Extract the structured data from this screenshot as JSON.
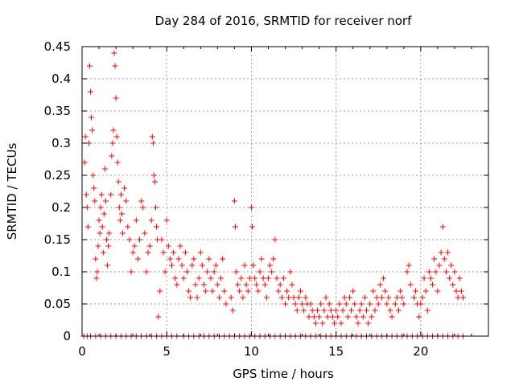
{
  "chart_data": {
    "type": "scatter",
    "title": "Day 284 of 2016, SRMTID for receiver norf",
    "xlabel": "GPS time / hours",
    "ylabel": "SRMTID / TECUs",
    "xlim": [
      0,
      24
    ],
    "ylim": [
      0,
      0.45
    ],
    "x_ticks": [
      0,
      5,
      10,
      15,
      20
    ],
    "x_tick_labels": [
      "0",
      "5",
      "10",
      "15",
      "20"
    ],
    "y_ticks": [
      0,
      0.05,
      0.1,
      0.15,
      0.2,
      0.25,
      0.3,
      0.35,
      0.4,
      0.45
    ],
    "y_tick_labels": [
      "0",
      "0.05",
      "0.1",
      "0.15",
      "0.2",
      "0.25",
      "0.3",
      "0.35",
      "0.4",
      "0.45"
    ],
    "grid": true,
    "marker": "+",
    "color": "#ff0000",
    "series": [
      {
        "name": "SRMTID",
        "points": [
          [
            0.15,
            0.27
          ],
          [
            0.2,
            0.31
          ],
          [
            0.25,
            0.22
          ],
          [
            0.3,
            0.2
          ],
          [
            0.35,
            0.17
          ],
          [
            0.4,
            0.3
          ],
          [
            0.45,
            0.42
          ],
          [
            0.5,
            0.38
          ],
          [
            0.55,
            0.34
          ],
          [
            0.6,
            0.32
          ],
          [
            0.65,
            0.25
          ],
          [
            0.7,
            0.23
          ],
          [
            0.75,
            0.21
          ],
          [
            0.8,
            0.12
          ],
          [
            0.85,
            0.09
          ],
          [
            0.9,
            0.1
          ],
          [
            0.95,
            0.14
          ],
          [
            1.0,
            0.18
          ],
          [
            1.05,
            0.16
          ],
          [
            1.1,
            0.2
          ],
          [
            1.15,
            0.22
          ],
          [
            1.2,
            0.17
          ],
          [
            1.25,
            0.13
          ],
          [
            1.3,
            0.19
          ],
          [
            1.35,
            0.26
          ],
          [
            1.4,
            0.21
          ],
          [
            1.45,
            0.15
          ],
          [
            1.5,
            0.11
          ],
          [
            1.55,
            0.14
          ],
          [
            1.6,
            0.16
          ],
          [
            1.7,
            0.22
          ],
          [
            1.75,
            0.28
          ],
          [
            1.8,
            0.3
          ],
          [
            1.85,
            0.32
          ],
          [
            1.9,
            0.44
          ],
          [
            1.95,
            0.42
          ],
          [
            2.0,
            0.37
          ],
          [
            2.05,
            0.31
          ],
          [
            2.1,
            0.27
          ],
          [
            2.15,
            0.24
          ],
          [
            2.2,
            0.2
          ],
          [
            2.25,
            0.18
          ],
          [
            2.3,
            0.22
          ],
          [
            2.35,
            0.19
          ],
          [
            2.4,
            0.16
          ],
          [
            2.5,
            0.23
          ],
          [
            2.6,
            0.21
          ],
          [
            2.7,
            0.17
          ],
          [
            2.8,
            0.15
          ],
          [
            2.9,
            0.1
          ],
          [
            3.0,
            0.13
          ],
          [
            3.1,
            0.14
          ],
          [
            3.2,
            0.18
          ],
          [
            3.3,
            0.12
          ],
          [
            3.4,
            0.15
          ],
          [
            3.5,
            0.21
          ],
          [
            3.6,
            0.2
          ],
          [
            3.7,
            0.16
          ],
          [
            3.8,
            0.1
          ],
          [
            3.9,
            0.13
          ],
          [
            4.0,
            0.14
          ],
          [
            4.1,
            0.18
          ],
          [
            4.15,
            0.31
          ],
          [
            4.2,
            0.3
          ],
          [
            4.25,
            0.25
          ],
          [
            4.3,
            0.24
          ],
          [
            4.35,
            0.2
          ],
          [
            4.4,
            0.17
          ],
          [
            4.45,
            0.15
          ],
          [
            4.5,
            0.03
          ],
          [
            4.6,
            0.07
          ],
          [
            4.7,
            0.15
          ],
          [
            4.8,
            0.13
          ],
          [
            4.9,
            0.1
          ],
          [
            5.0,
            0.18
          ],
          [
            5.1,
            0.14
          ],
          [
            5.2,
            0.12
          ],
          [
            5.3,
            0.11
          ],
          [
            5.4,
            0.13
          ],
          [
            5.5,
            0.09
          ],
          [
            5.6,
            0.08
          ],
          [
            5.7,
            0.12
          ],
          [
            5.8,
            0.14
          ],
          [
            5.9,
            0.11
          ],
          [
            6.0,
            0.09
          ],
          [
            6.1,
            0.13
          ],
          [
            6.2,
            0.1
          ],
          [
            6.3,
            0.07
          ],
          [
            6.4,
            0.06
          ],
          [
            6.5,
            0.11
          ],
          [
            6.6,
            0.12
          ],
          [
            6.7,
            0.08
          ],
          [
            6.8,
            0.06
          ],
          [
            6.9,
            0.09
          ],
          [
            7.0,
            0.13
          ],
          [
            7.1,
            0.11
          ],
          [
            7.2,
            0.08
          ],
          [
            7.3,
            0.07
          ],
          [
            7.4,
            0.1
          ],
          [
            7.5,
            0.12
          ],
          [
            7.6,
            0.09
          ],
          [
            7.7,
            0.07
          ],
          [
            7.8,
            0.1
          ],
          [
            7.9,
            0.11
          ],
          [
            8.0,
            0.08
          ],
          [
            8.1,
            0.06
          ],
          [
            8.2,
            0.09
          ],
          [
            8.3,
            0.12
          ],
          [
            8.4,
            0.07
          ],
          [
            8.5,
            0.05
          ],
          [
            8.8,
            0.06
          ],
          [
            8.9,
            0.04
          ],
          [
            9.0,
            0.21
          ],
          [
            9.05,
            0.17
          ],
          [
            9.1,
            0.1
          ],
          [
            9.2,
            0.08
          ],
          [
            9.3,
            0.07
          ],
          [
            9.4,
            0.09
          ],
          [
            9.5,
            0.06
          ],
          [
            9.6,
            0.11
          ],
          [
            9.7,
            0.08
          ],
          [
            9.8,
            0.07
          ],
          [
            9.9,
            0.09
          ],
          [
            10.0,
            0.2
          ],
          [
            10.05,
            0.17
          ],
          [
            10.1,
            0.11
          ],
          [
            10.2,
            0.09
          ],
          [
            10.3,
            0.08
          ],
          [
            10.4,
            0.07
          ],
          [
            10.5,
            0.1
          ],
          [
            10.6,
            0.12
          ],
          [
            10.7,
            0.09
          ],
          [
            10.8,
            0.08
          ],
          [
            10.9,
            0.06
          ],
          [
            11.0,
            0.09
          ],
          [
            11.1,
            0.11
          ],
          [
            11.2,
            0.1
          ],
          [
            11.3,
            0.12
          ],
          [
            11.4,
            0.15
          ],
          [
            11.5,
            0.09
          ],
          [
            11.6,
            0.07
          ],
          [
            11.7,
            0.08
          ],
          [
            11.8,
            0.06
          ],
          [
            11.9,
            0.09
          ],
          [
            12.0,
            0.05
          ],
          [
            12.1,
            0.07
          ],
          [
            12.2,
            0.06
          ],
          [
            12.3,
            0.1
          ],
          [
            12.4,
            0.08
          ],
          [
            12.5,
            0.06
          ],
          [
            12.6,
            0.05
          ],
          [
            12.7,
            0.04
          ],
          [
            12.8,
            0.06
          ],
          [
            12.9,
            0.07
          ],
          [
            13.0,
            0.05
          ],
          [
            13.1,
            0.04
          ],
          [
            13.2,
            0.06
          ],
          [
            13.3,
            0.05
          ],
          [
            13.4,
            0.03
          ],
          [
            13.5,
            0.05
          ],
          [
            13.6,
            0.04
          ],
          [
            13.7,
            0.03
          ],
          [
            13.8,
            0.02
          ],
          [
            13.9,
            0.04
          ],
          [
            14.0,
            0.03
          ],
          [
            14.1,
            0.05
          ],
          [
            14.2,
            0.02
          ],
          [
            14.3,
            0.04
          ],
          [
            14.4,
            0.06
          ],
          [
            14.5,
            0.03
          ],
          [
            14.6,
            0.05
          ],
          [
            14.7,
            0.04
          ],
          [
            14.8,
            0.03
          ],
          [
            14.9,
            0.02
          ],
          [
            15.0,
            0.04
          ],
          [
            15.1,
            0.03
          ],
          [
            15.2,
            0.05
          ],
          [
            15.3,
            0.02
          ],
          [
            15.4,
            0.04
          ],
          [
            15.5,
            0.06
          ],
          [
            15.6,
            0.05
          ],
          [
            15.7,
            0.03
          ],
          [
            15.8,
            0.06
          ],
          [
            15.9,
            0.04
          ],
          [
            16.0,
            0.07
          ],
          [
            16.1,
            0.05
          ],
          [
            16.2,
            0.03
          ],
          [
            16.3,
            0.02
          ],
          [
            16.4,
            0.04
          ],
          [
            16.5,
            0.05
          ],
          [
            16.6,
            0.03
          ],
          [
            16.7,
            0.06
          ],
          [
            16.8,
            0.04
          ],
          [
            16.9,
            0.02
          ],
          [
            17.0,
            0.05
          ],
          [
            17.1,
            0.03
          ],
          [
            17.2,
            0.07
          ],
          [
            17.3,
            0.04
          ],
          [
            17.4,
            0.06
          ],
          [
            17.5,
            0.05
          ],
          [
            17.6,
            0.08
          ],
          [
            17.7,
            0.06
          ],
          [
            17.8,
            0.09
          ],
          [
            17.9,
            0.07
          ],
          [
            18.0,
            0.05
          ],
          [
            18.1,
            0.06
          ],
          [
            18.2,
            0.04
          ],
          [
            18.3,
            0.03
          ],
          [
            18.5,
            0.05
          ],
          [
            18.6,
            0.06
          ],
          [
            18.7,
            0.04
          ],
          [
            18.8,
            0.07
          ],
          [
            18.9,
            0.06
          ],
          [
            19.0,
            0.05
          ],
          [
            19.2,
            0.1
          ],
          [
            19.3,
            0.11
          ],
          [
            19.4,
            0.08
          ],
          [
            19.6,
            0.06
          ],
          [
            19.7,
            0.07
          ],
          [
            19.8,
            0.05
          ],
          [
            19.9,
            0.03
          ],
          [
            20.0,
            0.05
          ],
          [
            20.1,
            0.06
          ],
          [
            20.2,
            0.09
          ],
          [
            20.3,
            0.07
          ],
          [
            20.4,
            0.04
          ],
          [
            20.5,
            0.1
          ],
          [
            20.6,
            0.09
          ],
          [
            20.7,
            0.08
          ],
          [
            20.8,
            0.12
          ],
          [
            20.9,
            0.1
          ],
          [
            21.0,
            0.07
          ],
          [
            21.1,
            0.11
          ],
          [
            21.2,
            0.13
          ],
          [
            21.3,
            0.17
          ],
          [
            21.4,
            0.12
          ],
          [
            21.5,
            0.1
          ],
          [
            21.6,
            0.13
          ],
          [
            21.7,
            0.09
          ],
          [
            21.8,
            0.11
          ],
          [
            21.9,
            0.08
          ],
          [
            22.0,
            0.1
          ],
          [
            22.1,
            0.07
          ],
          [
            22.2,
            0.06
          ],
          [
            22.3,
            0.09
          ],
          [
            22.4,
            0.07
          ],
          [
            22.5,
            0.06
          ]
        ],
        "baseline_zero_x": [
          0.1,
          0.3,
          0.5,
          0.8,
          1.1,
          1.4,
          1.7,
          2.0,
          2.3,
          2.6,
          2.9,
          3.2,
          3.5,
          3.8,
          4.1,
          4.4,
          4.7,
          5.0,
          5.3,
          5.6,
          6.0,
          6.3,
          6.6,
          6.9,
          7.2,
          7.5,
          7.8,
          8.1,
          8.4,
          8.7,
          9.0,
          9.3,
          9.6,
          9.9,
          10.2,
          10.5,
          10.8,
          11.1,
          11.4,
          11.7,
          12.0,
          12.3,
          12.6,
          12.9,
          13.2,
          13.5,
          13.8,
          14.1,
          14.4,
          14.7,
          15.0,
          15.3,
          15.6,
          15.9,
          16.2,
          16.5,
          16.8,
          17.1,
          17.4,
          17.7,
          18.0,
          18.3,
          18.6,
          18.9,
          19.2,
          19.5,
          19.8,
          20.1,
          20.4,
          20.7,
          21.0,
          21.3,
          21.6,
          21.9,
          22.2,
          22.5
        ]
      }
    ]
  }
}
